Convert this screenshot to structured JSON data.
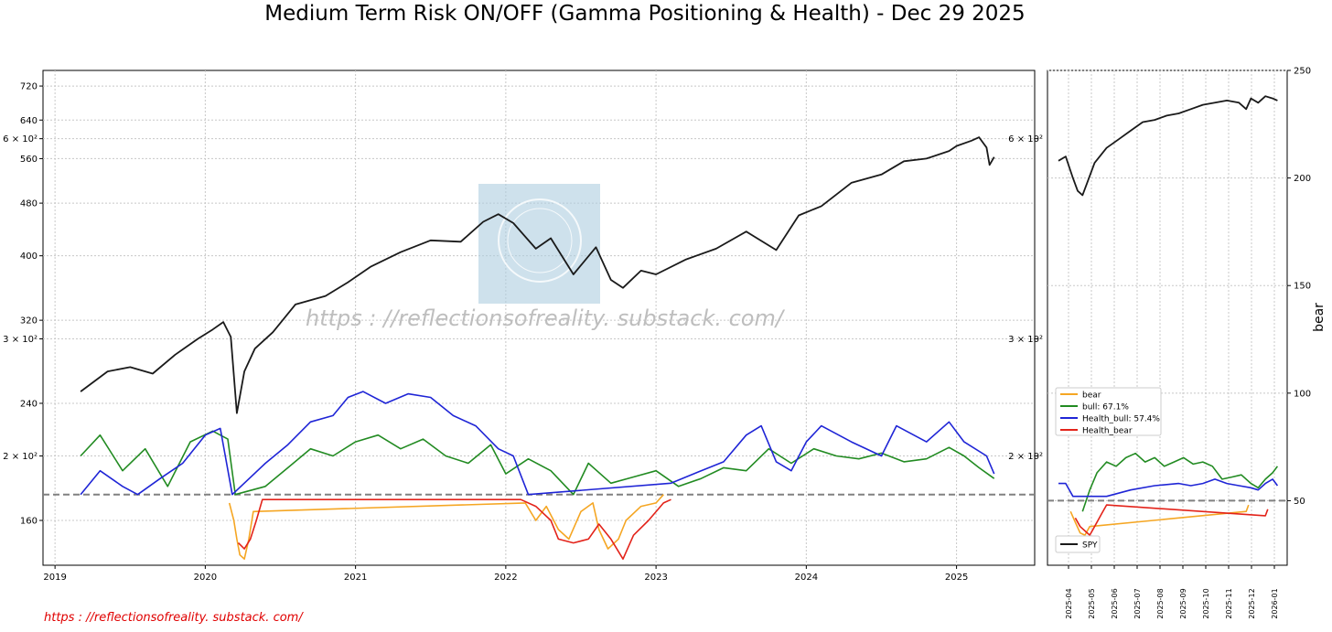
{
  "title": "Medium Term Risk ON/OFF (Gamma Positioning & Health)  - Dec 29 2025",
  "footer_url": "https : //reflectionsofreality. substack. com/",
  "watermark_text": "https : //reflectionsofreality. substack. com/",
  "colors": {
    "spy": "#1a1a1a",
    "bear": "#f5a623",
    "bull": "#228b22",
    "health_bull": "#1f25d6",
    "health_bear": "#e3231a",
    "threshold": "#808080",
    "grid": "#c8c8c8",
    "watermark_box": "#aecde0",
    "footer": "#e00000"
  },
  "chart_data": [
    {
      "type": "line",
      "name": "main-panel",
      "title": "Medium Term Risk ON/OFF (Gamma Positioning & Health)  - Dec 29 2025",
      "yscale": "log",
      "ylim": [
        137,
        760
      ],
      "x_range": [
        2018.92,
        2025.52
      ],
      "x_ticks": [
        2019,
        2020,
        2021,
        2022,
        2023,
        2024,
        2025
      ],
      "x_tick_labels": [
        "2019",
        "2020",
        "2021",
        "2022",
        "2023",
        "2024",
        "2025"
      ],
      "y_ticks": [
        160,
        200,
        240,
        300,
        320,
        400,
        480,
        560,
        600,
        640,
        720
      ],
      "y_tick_labels": [
        "160",
        "2 × 10²",
        "240",
        "3 × 10²",
        "320",
        "400",
        "480",
        "560",
        "6 × 10²",
        "640",
        "720"
      ],
      "right_tick_values": [
        200,
        300,
        600
      ],
      "right_tick_labels": [
        "2 × 10²",
        "3 × 10²",
        "6 × 10²"
      ],
      "threshold": 175,
      "grid": true,
      "series": [
        {
          "name": "SPY",
          "x": [
            2019.17,
            2019.35,
            2019.5,
            2019.65,
            2019.8,
            2019.95,
            2020.05,
            2020.12,
            2020.17,
            2020.21,
            2020.26,
            2020.33,
            2020.45,
            2020.6,
            2020.8,
            2020.95,
            2021.1,
            2021.3,
            2021.5,
            2021.7,
            2021.85,
            2021.95,
            2022.05,
            2022.2,
            2022.3,
            2022.45,
            2022.6,
            2022.7,
            2022.78,
            2022.9,
            2023.0,
            2023.2,
            2023.4,
            2023.6,
            2023.8,
            2023.95,
            2024.1,
            2024.3,
            2024.5,
            2024.65,
            2024.8,
            2024.95,
            2025.0,
            2025.1,
            2025.15,
            2025.2,
            2025.22,
            2025.25
          ],
          "values": [
            250,
            268,
            272,
            266,
            284,
            300,
            310,
            318,
            302,
            232,
            268,
            290,
            307,
            338,
            348,
            365,
            385,
            405,
            422,
            420,
            450,
            462,
            448,
            410,
            425,
            375,
            412,
            368,
            358,
            380,
            375,
            395,
            410,
            435,
            408,
            460,
            475,
            515,
            530,
            555,
            560,
            575,
            585,
            596,
            603,
            582,
            548,
            563
          ]
        },
        {
          "name": "bull: 67.1%",
          "x": [
            2019.17,
            2019.3,
            2019.45,
            2019.6,
            2019.75,
            2019.9,
            2020.05,
            2020.15,
            2020.2,
            2020.4,
            2020.55,
            2020.7,
            2020.85,
            2021.0,
            2021.15,
            2021.3,
            2021.45,
            2021.6,
            2021.75,
            2021.9,
            2022.0,
            2022.15,
            2022.3,
            2022.45,
            2022.55,
            2022.7,
            2022.85,
            2023.0,
            2023.15,
            2023.3,
            2023.45,
            2023.6,
            2023.75,
            2023.9,
            2024.05,
            2024.2,
            2024.35,
            2024.5,
            2024.65,
            2024.8,
            2024.95,
            2025.05,
            2025.15,
            2025.25
          ],
          "values": [
            200,
            215,
            190,
            205,
            180,
            210,
            218,
            212,
            175,
            180,
            192,
            205,
            200,
            210,
            215,
            205,
            212,
            200,
            195,
            208,
            188,
            198,
            190,
            175,
            195,
            182,
            186,
            190,
            180,
            185,
            192,
            190,
            205,
            195,
            205,
            200,
            198,
            202,
            196,
            198,
            206,
            200,
            192,
            185
          ]
        },
        {
          "name": "Health_bull: 57.4%",
          "x": [
            2019.17,
            2019.3,
            2019.45,
            2019.55,
            2019.7,
            2019.85,
            2020.0,
            2020.1,
            2020.18,
            2020.4,
            2020.55,
            2020.7,
            2020.85,
            2020.95,
            2021.05,
            2021.2,
            2021.35,
            2021.5,
            2021.65,
            2021.8,
            2021.95,
            2022.05,
            2022.15,
            2023.1,
            2023.3,
            2023.45,
            2023.6,
            2023.7,
            2023.8,
            2023.9,
            2024.0,
            2024.1,
            2024.3,
            2024.5,
            2024.6,
            2024.8,
            2024.95,
            2025.05,
            2025.2,
            2025.25
          ],
          "values": [
            175,
            190,
            180,
            175,
            185,
            195,
            215,
            220,
            175,
            195,
            208,
            225,
            230,
            245,
            250,
            240,
            248,
            245,
            230,
            222,
            205,
            200,
            175,
            182,
            190,
            196,
            215,
            222,
            196,
            190,
            210,
            222,
            210,
            200,
            222,
            210,
            225,
            210,
            200,
            188
          ]
        },
        {
          "name": "bear",
          "x": [
            2020.16,
            2020.19,
            2020.21,
            2020.23,
            2020.26,
            2020.29,
            2020.32,
            2022.13,
            2022.2,
            2022.27,
            2022.35,
            2022.42,
            2022.5,
            2022.58,
            2022.62,
            2022.68,
            2022.75,
            2022.8,
            2022.9,
            2023.0,
            2023.05
          ],
          "values": [
            170,
            160,
            150,
            142,
            140,
            150,
            165,
            170,
            160,
            168,
            155,
            150,
            165,
            170,
            155,
            145,
            150,
            160,
            168,
            170,
            175
          ]
        },
        {
          "name": "Health_bear",
          "x": [
            2020.22,
            2020.26,
            2020.3,
            2020.34,
            2020.38,
            2022.1,
            2022.2,
            2022.3,
            2022.35,
            2022.45,
            2022.55,
            2022.62,
            2022.7,
            2022.78,
            2022.85,
            2022.95,
            2023.05,
            2023.1
          ],
          "values": [
            148,
            145,
            150,
            160,
            172,
            172,
            168,
            160,
            150,
            148,
            150,
            158,
            150,
            140,
            152,
            160,
            170,
            172
          ]
        }
      ]
    },
    {
      "type": "line",
      "name": "side-panel",
      "ylim": [
        20,
        250
      ],
      "ylabel": "bear",
      "y_ticks": [
        50,
        100,
        150,
        200,
        250
      ],
      "y_tick_labels": [
        "50",
        "100",
        "150",
        "200",
        "250"
      ],
      "x_tick_labels": [
        "2025-04",
        "2025-05",
        "2025-06",
        "2025-07",
        "2025-08",
        "2025-09",
        "2025-10",
        "2025-11",
        "2025-12",
        "2026-01"
      ],
      "threshold": 50,
      "legend_upper_entries": [
        "bear",
        "bull: 67.1%",
        "Health_bull: 57.4%",
        "Health_bear"
      ],
      "legend_lower_entries": [
        "SPY"
      ],
      "legend_position_upper": "center-left",
      "legend_position_lower": "bottom-left",
      "series": [
        {
          "name": "SPY",
          "x": [
            0,
            0.3,
            0.6,
            0.8,
            1.0,
            1.2,
            1.5,
            2.0,
            2.5,
            3.0,
            3.5,
            4.0,
            4.5,
            5.0,
            5.5,
            6.0,
            6.5,
            7.0,
            7.5,
            7.8,
            8.0,
            8.3,
            8.6,
            8.9,
            9.1
          ],
          "values": [
            208,
            210,
            200,
            194,
            192,
            198,
            207,
            214,
            218,
            222,
            226,
            227,
            229,
            230,
            232,
            234,
            235,
            236,
            235,
            232,
            237,
            235,
            238,
            237,
            236
          ]
        },
        {
          "name": "bull: 67.1%",
          "x": [
            1.0,
            1.3,
            1.6,
            2.0,
            2.4,
            2.8,
            3.2,
            3.6,
            4.0,
            4.4,
            4.8,
            5.2,
            5.6,
            6.0,
            6.4,
            6.8,
            7.2,
            7.6,
            8.0,
            8.3,
            8.6,
            8.9,
            9.1
          ],
          "values": [
            45,
            55,
            63,
            68,
            66,
            70,
            72,
            68,
            70,
            66,
            68,
            70,
            67,
            68,
            66,
            60,
            61,
            62,
            58,
            56,
            60,
            63,
            66
          ]
        },
        {
          "name": "Health_bull: 57.4%",
          "x": [
            0,
            0.3,
            0.6,
            2.0,
            3.0,
            4.0,
            5.0,
            5.5,
            6.0,
            6.5,
            7.0,
            7.5,
            8.0,
            8.3,
            8.6,
            8.9,
            9.1
          ],
          "values": [
            58,
            58,
            52,
            52,
            55,
            57,
            58,
            57,
            58,
            60,
            58,
            57,
            56,
            55,
            58,
            60,
            57
          ]
        },
        {
          "name": "bear",
          "x": [
            0.5,
            0.7,
            0.9,
            1.1,
            1.3,
            7.8,
            7.9
          ],
          "values": [
            45,
            40,
            35,
            34,
            38,
            45,
            48
          ]
        },
        {
          "name": "Health_bear",
          "x": [
            0.7,
            0.9,
            1.1,
            1.3,
            1.5,
            1.8,
            2.0,
            8.6,
            8.7
          ],
          "values": [
            42,
            38,
            36,
            34,
            38,
            44,
            48,
            43,
            46
          ]
        }
      ]
    }
  ]
}
